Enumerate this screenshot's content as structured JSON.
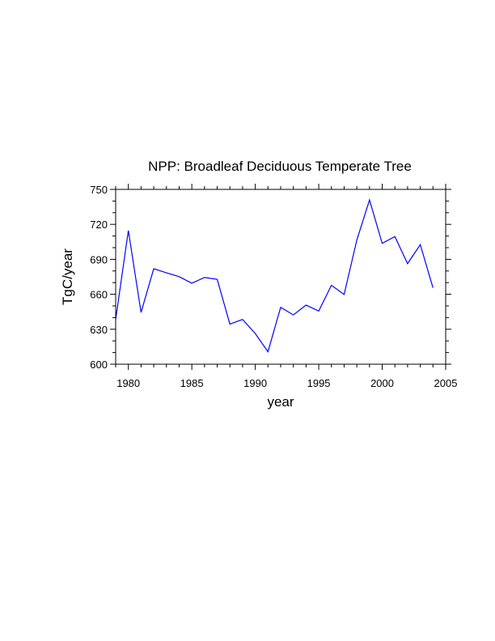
{
  "chart_data": {
    "type": "line",
    "title": "NPP: Broadleaf Deciduous Temperate Tree",
    "xlabel": "year",
    "ylabel": "TgC/year",
    "xlim": [
      1979,
      2005
    ],
    "ylim": [
      600,
      750
    ],
    "xticks": [
      1980,
      1985,
      1990,
      1995,
      2000,
      2005
    ],
    "yticks": [
      600,
      630,
      660,
      690,
      720,
      750
    ],
    "grid": false,
    "series": [
      {
        "name": "NPP",
        "color": "#0000ff",
        "x": [
          1979,
          1980,
          1981,
          1982,
          1983,
          1984,
          1985,
          1986,
          1987,
          1988,
          1989,
          1990,
          1991,
          1992,
          1993,
          1994,
          1995,
          1996,
          1997,
          1998,
          1999,
          2000,
          2001,
          2002,
          2003,
          2004
        ],
        "values": [
          638.4,
          714.7,
          644.4,
          681.9,
          678.4,
          675.1,
          669.5,
          674.4,
          672.8,
          634.4,
          638.4,
          626.3,
          610.7,
          648.8,
          642.3,
          650.7,
          645.6,
          667.7,
          659.8,
          706.5,
          740.9,
          703.7,
          709.5,
          686.3,
          702.6,
          665.6
        ]
      }
    ]
  }
}
